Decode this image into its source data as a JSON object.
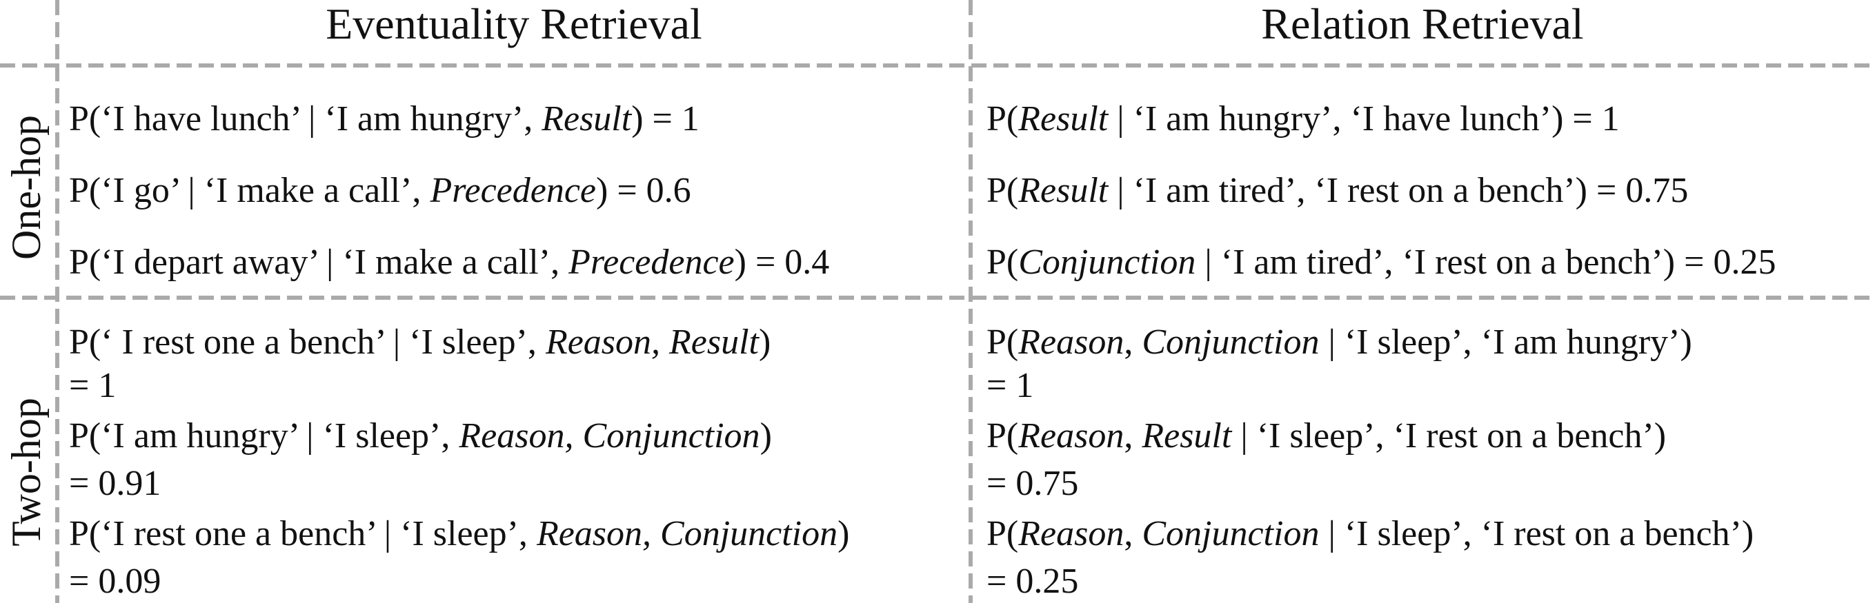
{
  "header": {
    "columns": [
      "Eventuality Retrieval",
      "Relation Retrieval"
    ]
  },
  "sections": [
    {
      "label": "One-hop",
      "rows": [
        [
          [
            [
              {
                "text": "P(‘I have lunch’ | ‘I am hungry’, ",
                "italic": false
              },
              {
                "text": "Result",
                "italic": true
              },
              {
                "text": ") = 1",
                "italic": false
              }
            ]
          ],
          [
            [
              {
                "text": "P(",
                "italic": false
              },
              {
                "text": "Result",
                "italic": true
              },
              {
                "text": " | ‘I am hungry’, ‘I have lunch’) = 1",
                "italic": false
              }
            ]
          ]
        ],
        [
          [
            [
              {
                "text": "P(‘I go’ | ‘I make a call’, ",
                "italic": false
              },
              {
                "text": "Precedence",
                "italic": true
              },
              {
                "text": ") = 0.6",
                "italic": false
              }
            ]
          ],
          [
            [
              {
                "text": "P(",
                "italic": false
              },
              {
                "text": "Result",
                "italic": true
              },
              {
                "text": " | ‘I am tired’, ‘I rest on a bench’) = 0.75",
                "italic": false
              }
            ]
          ]
        ],
        [
          [
            [
              {
                "text": "P(‘I depart away’ | ‘I make a call’, ",
                "italic": false
              },
              {
                "text": "Precedence",
                "italic": true
              },
              {
                "text": ") = 0.4",
                "italic": false
              }
            ]
          ],
          [
            [
              {
                "text": "P(",
                "italic": false
              },
              {
                "text": "Conjunction",
                "italic": true
              },
              {
                "text": " | ‘I am tired’, ‘I rest on a bench’) = 0.25",
                "italic": false
              }
            ]
          ]
        ]
      ]
    },
    {
      "label": "Two-hop",
      "rows": [
        [
          [
            [
              {
                "text": "P(‘ I rest one a bench’ | ‘I sleep’, ",
                "italic": false
              },
              {
                "text": "Reason, Result",
                "italic": true
              },
              {
                "text": ")",
                "italic": false
              }
            ],
            [
              {
                "text": "= 1",
                "italic": false
              }
            ]
          ],
          [
            [
              {
                "text": "P(",
                "italic": false
              },
              {
                "text": "Reason",
                "italic": true
              },
              {
                "text": ", ",
                "italic": false
              },
              {
                "text": "Conjunction",
                "italic": true
              },
              {
                "text": " | ‘I sleep’, ‘I am hungry’)",
                "italic": false
              }
            ],
            [
              {
                "text": "= 1",
                "italic": false
              }
            ]
          ]
        ],
        [
          [
            [
              {
                "text": "P(‘I am hungry’ | ‘I sleep’, ",
                "italic": false
              },
              {
                "text": "Reason, Conjunction",
                "italic": true
              },
              {
                "text": ")",
                "italic": false
              }
            ],
            [
              {
                "text": "= 0.91",
                "italic": false
              }
            ]
          ],
          [
            [
              {
                "text": "P(",
                "italic": false
              },
              {
                "text": "Reason",
                "italic": true
              },
              {
                "text": ", ",
                "italic": false
              },
              {
                "text": "Result",
                "italic": true
              },
              {
                "text": " | ‘I sleep’, ‘I rest on a bench’)",
                "italic": false
              }
            ],
            [
              {
                "text": "= 0.75",
                "italic": false
              }
            ]
          ]
        ],
        [
          [
            [
              {
                "text": "P(‘I rest one a bench’ | ‘I sleep’, ",
                "italic": false
              },
              {
                "text": "Reason, Conjunction",
                "italic": true
              },
              {
                "text": ")",
                "italic": false
              }
            ],
            [
              {
                "text": "= 0.09",
                "italic": false
              }
            ]
          ],
          [
            [
              {
                "text": "P(",
                "italic": false
              },
              {
                "text": "Reason",
                "italic": true
              },
              {
                "text": ", ",
                "italic": false
              },
              {
                "text": "Conjunction",
                "italic": true
              },
              {
                "text": " | ‘I sleep’, ‘I rest on a bench’)",
                "italic": false
              }
            ],
            [
              {
                "text": "= 0.25",
                "italic": false
              }
            ]
          ]
        ]
      ]
    }
  ]
}
